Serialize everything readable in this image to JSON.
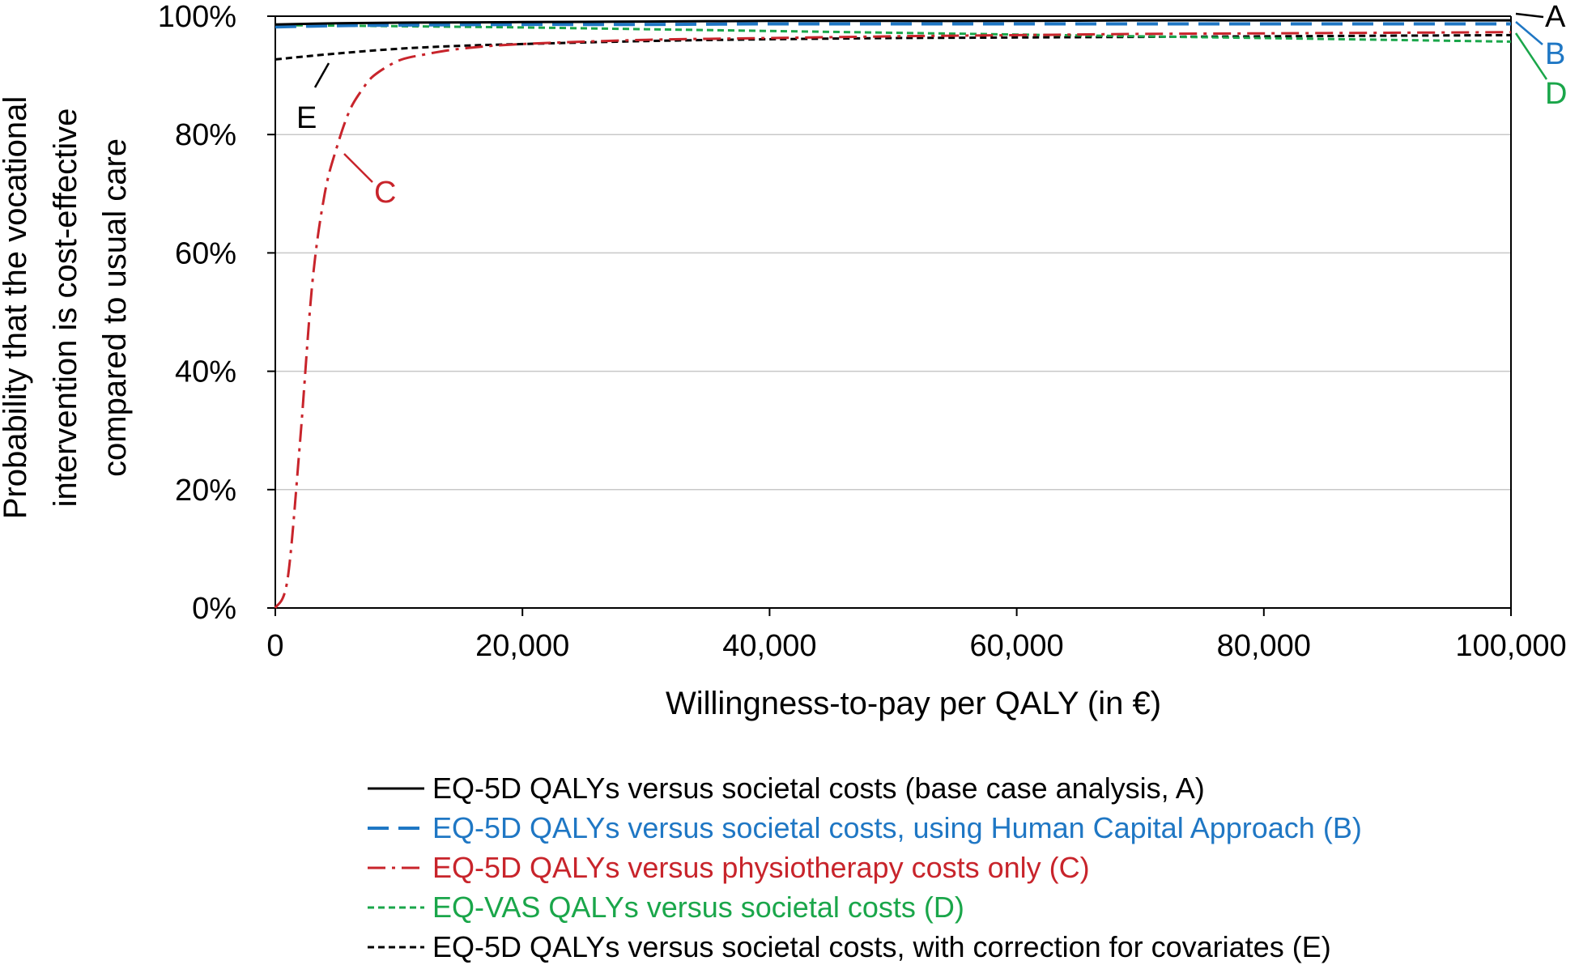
{
  "chart_data": {
    "type": "line",
    "title": "",
    "xlabel": "Willingness-to-pay per QALY (in €)",
    "ylabel_lines": [
      "Probability that the vocational",
      "intervention is cost-effective",
      "compared to usual care"
    ],
    "xlim": [
      0,
      100000
    ],
    "ylim": [
      0,
      1
    ],
    "x_ticks": [
      0,
      20000,
      40000,
      60000,
      80000,
      100000
    ],
    "x_tick_labels": [
      "0",
      "20,000",
      "40,000",
      "60,000",
      "80,000",
      "100,000"
    ],
    "y_ticks": [
      0,
      0.2,
      0.4,
      0.6,
      0.8,
      1.0
    ],
    "y_tick_labels": [
      "0%",
      "20%",
      "40%",
      "60%",
      "80%",
      "100%"
    ],
    "grid": "horizontal",
    "legend_position": "bottom",
    "series": [
      {
        "key": "A",
        "name": "EQ-5D QALYs  versus societal costs (base case analysis, A)",
        "color": "#000000",
        "dash": "solid",
        "x": [
          0,
          5000,
          10000,
          20000,
          30000,
          40000,
          50000,
          60000,
          70000,
          80000,
          90000,
          100000
        ],
        "y": [
          0.986,
          0.988,
          0.989,
          0.99,
          0.991,
          0.992,
          0.992,
          0.992,
          0.993,
          0.993,
          0.993,
          0.993
        ]
      },
      {
        "key": "B",
        "name": "EQ-5D QALYs versus societal costs, using Human Capital Approach (B)",
        "color": "#1f77c4",
        "dash": "long-dash",
        "x": [
          0,
          5000,
          10000,
          20000,
          30000,
          40000,
          50000,
          60000,
          70000,
          80000,
          90000,
          100000
        ],
        "y": [
          0.982,
          0.984,
          0.985,
          0.986,
          0.986,
          0.987,
          0.987,
          0.987,
          0.987,
          0.987,
          0.987,
          0.987
        ]
      },
      {
        "key": "C",
        "name": "EQ-5D QALYs versus physiotherapy costs only (C)",
        "color": "#c8242b",
        "dash": "dash-dot",
        "x": [
          0,
          1000,
          2000,
          3000,
          4000,
          5000,
          6000,
          7000,
          8000,
          10000,
          12000,
          15000,
          20000,
          30000,
          40000,
          50000,
          60000,
          70000,
          80000,
          90000,
          100000
        ],
        "y": [
          0.0,
          0.05,
          0.28,
          0.55,
          0.7,
          0.78,
          0.84,
          0.875,
          0.9,
          0.925,
          0.935,
          0.945,
          0.953,
          0.96,
          0.963,
          0.966,
          0.968,
          0.97,
          0.971,
          0.972,
          0.973
        ]
      },
      {
        "key": "D",
        "name": "EQ-VAS QALYs versus societal costs (D)",
        "color": "#1aa64a",
        "dash": "short-dash",
        "x": [
          0,
          10000,
          20000,
          30000,
          40000,
          50000,
          60000,
          70000,
          80000,
          90000,
          100000
        ],
        "y": [
          0.985,
          0.983,
          0.981,
          0.978,
          0.975,
          0.972,
          0.969,
          0.966,
          0.963,
          0.96,
          0.957
        ]
      },
      {
        "key": "E",
        "name": "EQ-5D QALYs versus societal costs, with correction for covariates (E)",
        "color": "#000000",
        "dash": "short-dash",
        "x": [
          0,
          5000,
          10000,
          15000,
          20000,
          30000,
          40000,
          50000,
          60000,
          70000,
          80000,
          90000,
          100000
        ],
        "y": [
          0.927,
          0.937,
          0.945,
          0.95,
          0.953,
          0.958,
          0.961,
          0.963,
          0.964,
          0.965,
          0.966,
          0.967,
          0.968
        ]
      }
    ],
    "annotations": [
      {
        "text": "A",
        "color": "#000000"
      },
      {
        "text": "B",
        "color": "#1f77c4"
      },
      {
        "text": "C",
        "color": "#c8242b"
      },
      {
        "text": "D",
        "color": "#1aa64a"
      },
      {
        "text": "E",
        "color": "#000000"
      }
    ]
  }
}
